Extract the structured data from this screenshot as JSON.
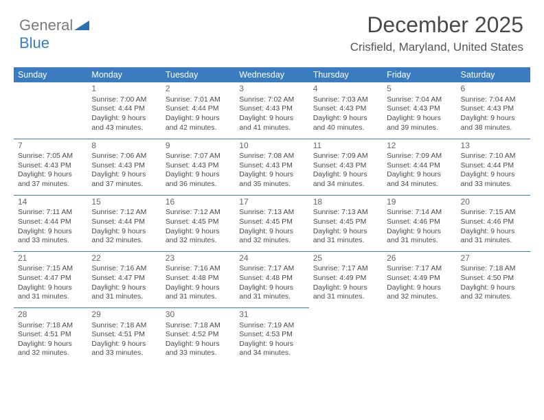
{
  "logo": {
    "text_gray": "General",
    "text_blue": "Blue"
  },
  "header": {
    "month": "December 2025",
    "location": "Crisfield, Maryland, United States"
  },
  "days": [
    "Sunday",
    "Monday",
    "Tuesday",
    "Wednesday",
    "Thursday",
    "Friday",
    "Saturday"
  ],
  "colors": {
    "header_bg": "#3a7cbf",
    "header_text": "#ffffff",
    "border": "#3a7cbf",
    "body_text": "#4a4a4a"
  },
  "cells": [
    [
      null,
      {
        "n": "1",
        "sr": "7:00 AM",
        "ss": "4:44 PM",
        "dl": "9 hours and 43 minutes."
      },
      {
        "n": "2",
        "sr": "7:01 AM",
        "ss": "4:44 PM",
        "dl": "9 hours and 42 minutes."
      },
      {
        "n": "3",
        "sr": "7:02 AM",
        "ss": "4:43 PM",
        "dl": "9 hours and 41 minutes."
      },
      {
        "n": "4",
        "sr": "7:03 AM",
        "ss": "4:43 PM",
        "dl": "9 hours and 40 minutes."
      },
      {
        "n": "5",
        "sr": "7:04 AM",
        "ss": "4:43 PM",
        "dl": "9 hours and 39 minutes."
      },
      {
        "n": "6",
        "sr": "7:04 AM",
        "ss": "4:43 PM",
        "dl": "9 hours and 38 minutes."
      }
    ],
    [
      {
        "n": "7",
        "sr": "7:05 AM",
        "ss": "4:43 PM",
        "dl": "9 hours and 37 minutes."
      },
      {
        "n": "8",
        "sr": "7:06 AM",
        "ss": "4:43 PM",
        "dl": "9 hours and 37 minutes."
      },
      {
        "n": "9",
        "sr": "7:07 AM",
        "ss": "4:43 PM",
        "dl": "9 hours and 36 minutes."
      },
      {
        "n": "10",
        "sr": "7:08 AM",
        "ss": "4:43 PM",
        "dl": "9 hours and 35 minutes."
      },
      {
        "n": "11",
        "sr": "7:09 AM",
        "ss": "4:43 PM",
        "dl": "9 hours and 34 minutes."
      },
      {
        "n": "12",
        "sr": "7:09 AM",
        "ss": "4:44 PM",
        "dl": "9 hours and 34 minutes."
      },
      {
        "n": "13",
        "sr": "7:10 AM",
        "ss": "4:44 PM",
        "dl": "9 hours and 33 minutes."
      }
    ],
    [
      {
        "n": "14",
        "sr": "7:11 AM",
        "ss": "4:44 PM",
        "dl": "9 hours and 33 minutes."
      },
      {
        "n": "15",
        "sr": "7:12 AM",
        "ss": "4:44 PM",
        "dl": "9 hours and 32 minutes."
      },
      {
        "n": "16",
        "sr": "7:12 AM",
        "ss": "4:45 PM",
        "dl": "9 hours and 32 minutes."
      },
      {
        "n": "17",
        "sr": "7:13 AM",
        "ss": "4:45 PM",
        "dl": "9 hours and 32 minutes."
      },
      {
        "n": "18",
        "sr": "7:13 AM",
        "ss": "4:45 PM",
        "dl": "9 hours and 31 minutes."
      },
      {
        "n": "19",
        "sr": "7:14 AM",
        "ss": "4:46 PM",
        "dl": "9 hours and 31 minutes."
      },
      {
        "n": "20",
        "sr": "7:15 AM",
        "ss": "4:46 PM",
        "dl": "9 hours and 31 minutes."
      }
    ],
    [
      {
        "n": "21",
        "sr": "7:15 AM",
        "ss": "4:47 PM",
        "dl": "9 hours and 31 minutes."
      },
      {
        "n": "22",
        "sr": "7:16 AM",
        "ss": "4:47 PM",
        "dl": "9 hours and 31 minutes."
      },
      {
        "n": "23",
        "sr": "7:16 AM",
        "ss": "4:48 PM",
        "dl": "9 hours and 31 minutes."
      },
      {
        "n": "24",
        "sr": "7:17 AM",
        "ss": "4:48 PM",
        "dl": "9 hours and 31 minutes."
      },
      {
        "n": "25",
        "sr": "7:17 AM",
        "ss": "4:49 PM",
        "dl": "9 hours and 31 minutes."
      },
      {
        "n": "26",
        "sr": "7:17 AM",
        "ss": "4:49 PM",
        "dl": "9 hours and 32 minutes."
      },
      {
        "n": "27",
        "sr": "7:18 AM",
        "ss": "4:50 PM",
        "dl": "9 hours and 32 minutes."
      }
    ],
    [
      {
        "n": "28",
        "sr": "7:18 AM",
        "ss": "4:51 PM",
        "dl": "9 hours and 32 minutes."
      },
      {
        "n": "29",
        "sr": "7:18 AM",
        "ss": "4:51 PM",
        "dl": "9 hours and 33 minutes."
      },
      {
        "n": "30",
        "sr": "7:18 AM",
        "ss": "4:52 PM",
        "dl": "9 hours and 33 minutes."
      },
      {
        "n": "31",
        "sr": "7:19 AM",
        "ss": "4:53 PM",
        "dl": "9 hours and 34 minutes."
      },
      null,
      null,
      null
    ]
  ]
}
